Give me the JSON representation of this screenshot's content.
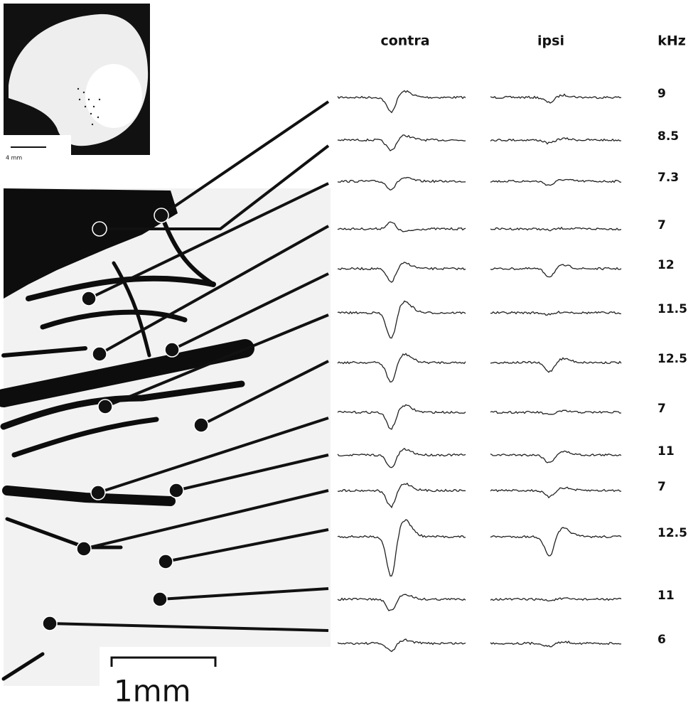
{
  "inset": {
    "scale_label": "4 mm"
  },
  "scale_bar": {
    "label": "1mm"
  },
  "columns": {
    "contra": "contra",
    "ipsi": "ipsi",
    "frequency": "kHz"
  },
  "frequencies": [
    9,
    8.5,
    7.3,
    7,
    12,
    11.5,
    12.5,
    7,
    11,
    7,
    12.5,
    11,
    6
  ]
}
